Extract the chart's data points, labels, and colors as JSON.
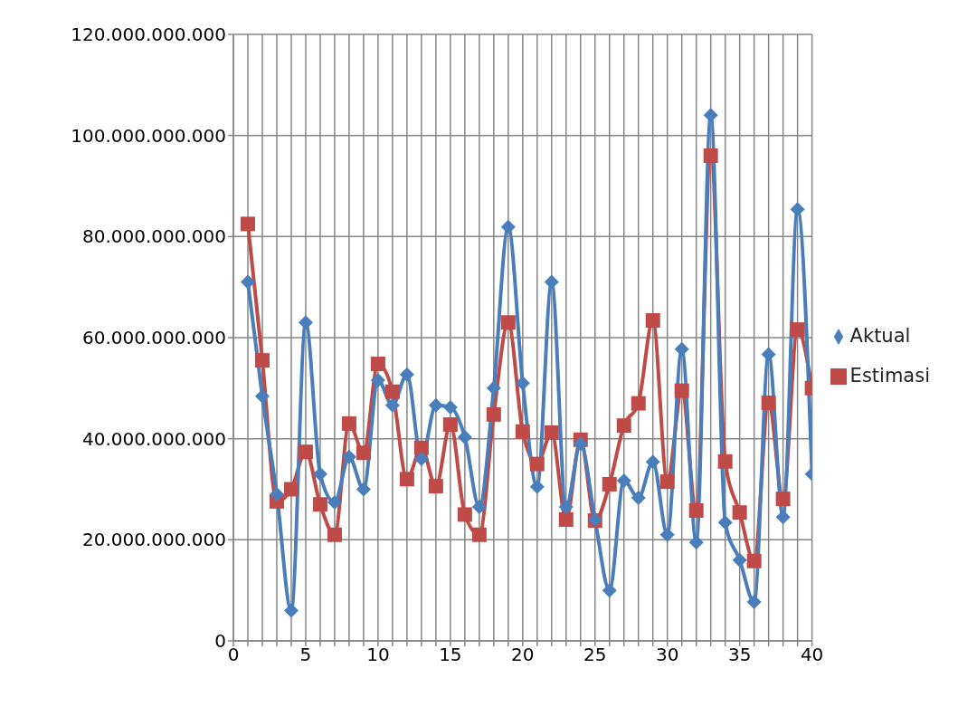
{
  "chart_data": {
    "type": "line",
    "x": [
      1,
      2,
      3,
      4,
      5,
      6,
      7,
      8,
      9,
      10,
      11,
      12,
      13,
      14,
      15,
      16,
      17,
      18,
      19,
      20,
      21,
      22,
      23,
      24,
      25,
      26,
      27,
      28,
      29,
      30,
      31,
      32,
      33,
      34,
      35,
      36,
      37,
      38,
      39,
      40
    ],
    "series": [
      {
        "name": "Aktual",
        "color": "#4a7ebb",
        "marker": "diamond",
        "values": [
          71000000000,
          48400000000,
          29000000000,
          6000000000,
          63000000000,
          33000000000,
          27400000000,
          36400000000,
          30000000000,
          51600000000,
          46600000000,
          52700000000,
          36000000000,
          46600000000,
          46200000000,
          40300000000,
          26500000000,
          50000000000,
          81900000000,
          51000000000,
          30500000000,
          71000000000,
          26500000000,
          39000000000,
          24000000000,
          10000000000,
          31700000000,
          28300000000,
          35400000000,
          21000000000,
          57700000000,
          19500000000,
          104000000000,
          23400000000,
          16000000000,
          7700000000,
          56700000000,
          24500000000,
          85400000000,
          33000000000
        ]
      },
      {
        "name": "Estimasi",
        "color": "#be4b48",
        "marker": "square",
        "values": [
          82500000000,
          55500000000,
          27600000000,
          30000000000,
          37400000000,
          27000000000,
          21000000000,
          43000000000,
          37200000000,
          54800000000,
          49300000000,
          32000000000,
          38200000000,
          30600000000,
          42800000000,
          25000000000,
          21000000000,
          44800000000,
          63000000000,
          41400000000,
          35000000000,
          41200000000,
          24000000000,
          39800000000,
          23800000000,
          31000000000,
          42600000000,
          47000000000,
          63400000000,
          31500000000,
          49500000000,
          25800000000,
          96000000000,
          35500000000,
          25400000000,
          15800000000,
          47100000000,
          28100000000,
          61600000000,
          50000000000
        ]
      }
    ],
    "xlim": [
      0,
      40
    ],
    "xticks": [
      0,
      {
        "value": 1,
        "label": null
      },
      {
        "value": 2,
        "label": null
      },
      {
        "value": 3,
        "label": null
      },
      {
        "value": 4,
        "label": null
      },
      5,
      {
        "value": 6,
        "label": null
      },
      {
        "value": 7,
        "label": null
      },
      {
        "value": 8,
        "label": null
      },
      {
        "value": 9,
        "label": null
      },
      10,
      {
        "value": 11,
        "label": null
      },
      {
        "value": 12,
        "label": null
      },
      {
        "value": 13,
        "label": null
      },
      {
        "value": 14,
        "label": null
      },
      15,
      {
        "value": 16,
        "label": null
      },
      {
        "value": 17,
        "label": null
      },
      {
        "value": 18,
        "label": null
      },
      {
        "value": 19,
        "label": null
      },
      20,
      {
        "value": 21,
        "label": null
      },
      {
        "value": 22,
        "label": null
      },
      {
        "value": 23,
        "label": null
      },
      {
        "value": 24,
        "label": null
      },
      25,
      {
        "value": 26,
        "label": null
      },
      {
        "value": 27,
        "label": null
      },
      {
        "value": 28,
        "label": null
      },
      {
        "value": 29,
        "label": null
      },
      30,
      {
        "value": 31,
        "label": null
      },
      {
        "value": 32,
        "label": null
      },
      {
        "value": 33,
        "label": null
      },
      {
        "value": 34,
        "label": null
      },
      35,
      {
        "value": 36,
        "label": null
      },
      {
        "value": 37,
        "label": null
      },
      {
        "value": 38,
        "label": null
      },
      {
        "value": 39,
        "label": null
      },
      40
    ],
    "ylim": [
      0,
      120000000000
    ],
    "yticks": [
      0,
      {
        "value": 20000000000,
        "label": "20.000.000.000"
      },
      {
        "value": 40000000000,
        "label": "40.000.000.000"
      },
      {
        "value": 60000000000,
        "label": "60.000.000.000"
      },
      {
        "value": 80000000000,
        "label": "80.000.000.000"
      },
      {
        "value": 100000000000,
        "label": "100.000.000.000"
      },
      {
        "value": 120000000000,
        "label": "120.000.000.000"
      }
    ],
    "grid": true,
    "legend": "right",
    "line_style": "solid"
  }
}
